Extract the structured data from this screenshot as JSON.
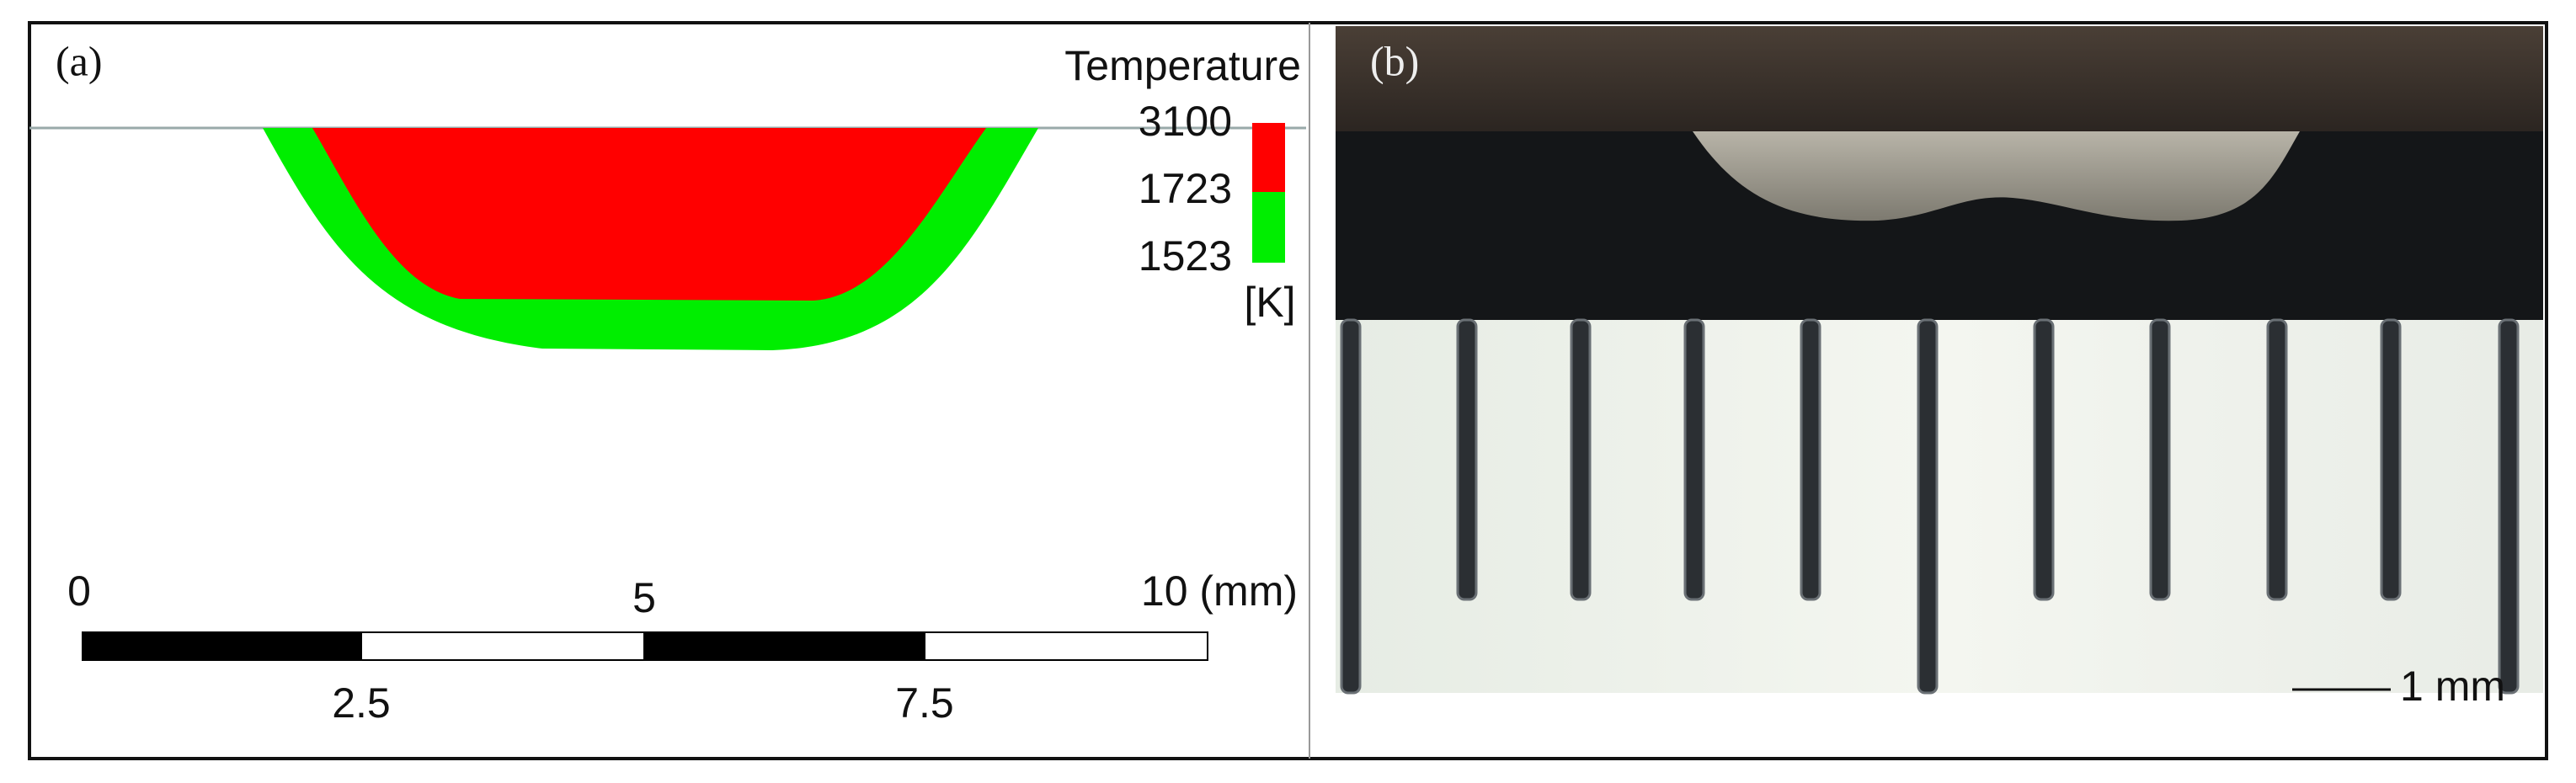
{
  "panel_a": {
    "label": "(a)",
    "legend": {
      "title": "Temperature",
      "levels": [
        "3100",
        "1723",
        "1523"
      ],
      "unit": "[K]"
    },
    "scale_bar": {
      "top_labels": [
        "0",
        "5",
        "10 (mm)"
      ],
      "bottom_labels": [
        "2.5",
        "7.5"
      ]
    }
  },
  "panel_b": {
    "label": "(b)",
    "scale_label": "1 mm"
  }
}
